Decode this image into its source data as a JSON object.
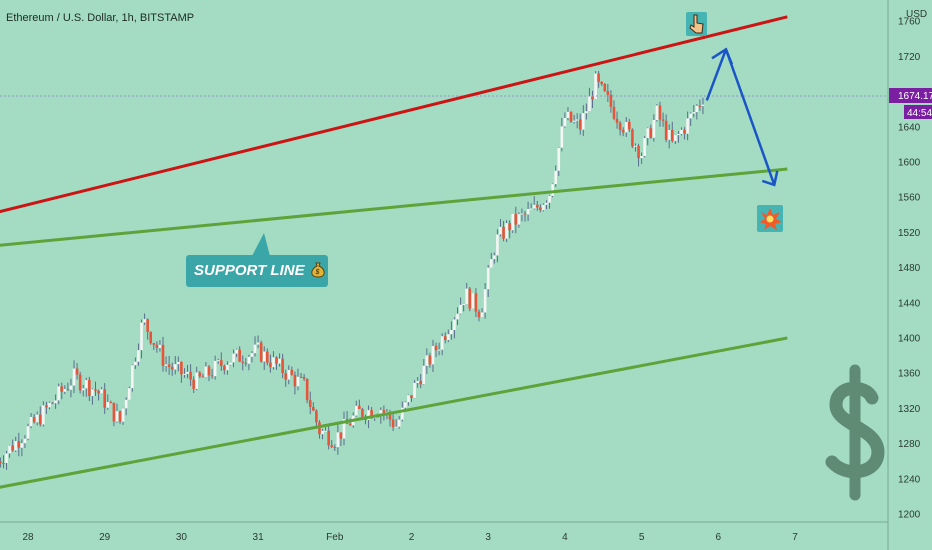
{
  "header": {
    "title": "Ethereum / U.S. Dollar, 1h, BITSTAMP",
    "currency": "USD"
  },
  "colors": {
    "background": "#a3dcc2",
    "resistance_line": "#cc1414",
    "support_line": "#5ea33a",
    "arrow": "#1a55c8",
    "candle_up": "#f5f5f5",
    "candle_down": "#e8543a",
    "price_tag": "#7b1fa2"
  },
  "annotations": {
    "support_label": "SUPPORT LINE",
    "price_tag": "1674.17",
    "timer_tag": "44:54",
    "icons": [
      "pointing-down-hand-icon",
      "collision-icon",
      "money-bag-icon",
      "dollar-sign-icon"
    ]
  },
  "chart_data": {
    "type": "candlestick",
    "symbol": "Ethereum / U.S. Dollar",
    "interval": "1h",
    "exchange": "BITSTAMP",
    "x_ticks": [
      "28",
      "29",
      "30",
      "31",
      "Feb",
      "2",
      "3",
      "4",
      "5",
      "6",
      "7"
    ],
    "y_ticks": [
      1200,
      1240,
      1280,
      1320,
      1360,
      1400,
      1440,
      1480,
      1520,
      1560,
      1600,
      1640,
      1680,
      1720,
      1760
    ],
    "ylim": [
      1190,
      1770
    ],
    "last_price": 1674.17,
    "price_path": [
      {
        "day": 27.6,
        "price": 1260
      },
      {
        "day": 28.1,
        "price": 1305
      },
      {
        "day": 28.6,
        "price": 1355
      },
      {
        "day": 28.9,
        "price": 1340
      },
      {
        "day": 29.2,
        "price": 1305
      },
      {
        "day": 29.5,
        "price": 1420
      },
      {
        "day": 29.8,
        "price": 1370
      },
      {
        "day": 30.2,
        "price": 1350
      },
      {
        "day": 30.6,
        "price": 1375
      },
      {
        "day": 31.0,
        "price": 1385
      },
      {
        "day": 31.3,
        "price": 1365
      },
      {
        "day": 31.6,
        "price": 1345
      },
      {
        "day": 31.8,
        "price": 1295
      },
      {
        "day": 32.0,
        "price": 1285
      },
      {
        "day": 32.3,
        "price": 1315
      },
      {
        "day": 32.6,
        "price": 1320
      },
      {
        "day": 32.8,
        "price": 1300
      },
      {
        "day": 33.1,
        "price": 1355
      },
      {
        "day": 33.4,
        "price": 1400
      },
      {
        "day": 33.7,
        "price": 1450
      },
      {
        "day": 33.9,
        "price": 1430
      },
      {
        "day": 34.1,
        "price": 1510
      },
      {
        "day": 34.3,
        "price": 1530
      },
      {
        "day": 34.6,
        "price": 1545
      },
      {
        "day": 34.8,
        "price": 1565
      },
      {
        "day": 35.0,
        "price": 1650
      },
      {
        "day": 35.2,
        "price": 1640
      },
      {
        "day": 35.4,
        "price": 1690
      },
      {
        "day": 35.7,
        "price": 1650
      },
      {
        "day": 36.0,
        "price": 1610
      },
      {
        "day": 36.2,
        "price": 1655
      },
      {
        "day": 36.4,
        "price": 1620
      },
      {
        "day": 36.6,
        "price": 1645
      },
      {
        "day": 36.8,
        "price": 1674
      }
    ],
    "trendlines": [
      {
        "name": "resistance",
        "color": "#cc1414",
        "x1": 27.0,
        "y1": 1530,
        "x2": 37.9,
        "y2": 1765
      },
      {
        "name": "support",
        "color": "#5ea33a",
        "x1": 27.0,
        "y1": 1500,
        "x2": 37.9,
        "y2": 1592
      },
      {
        "name": "lower_channel",
        "color": "#5ea33a",
        "x1": 27.0,
        "y1": 1220,
        "x2": 37.9,
        "y2": 1400
      }
    ],
    "projection": [
      {
        "day": 36.85,
        "price": 1670
      },
      {
        "day": 37.1,
        "price": 1728
      },
      {
        "day": 37.73,
        "price": 1574
      }
    ],
    "grid": false,
    "legend": "none"
  }
}
